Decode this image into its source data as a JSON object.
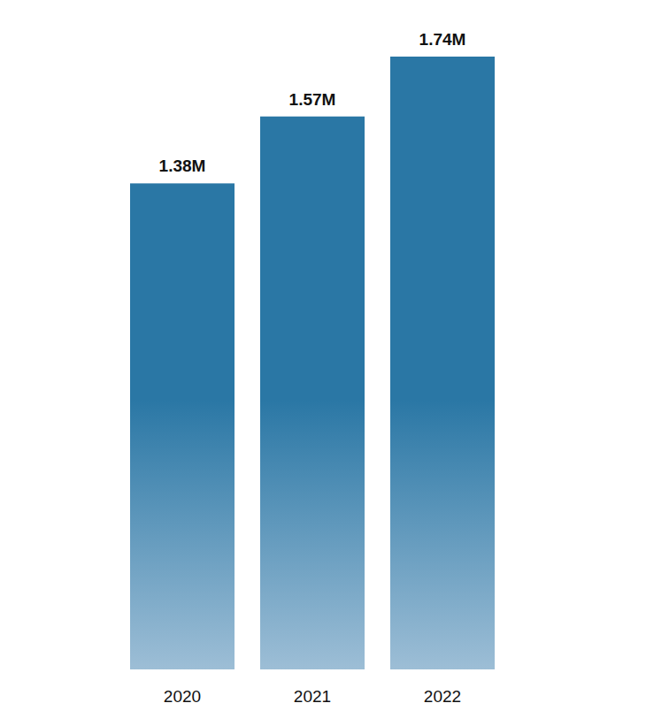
{
  "chart_data": {
    "type": "bar",
    "categories": [
      "2020",
      "2021",
      "2022"
    ],
    "values": [
      1.38,
      1.57,
      1.74
    ],
    "value_labels": [
      "1.38M",
      "1.57M",
      "1.74M"
    ],
    "color": "#2a77a5",
    "ylim": [
      0,
      1.74
    ],
    "data_labels": true,
    "tick_labels": "x"
  }
}
